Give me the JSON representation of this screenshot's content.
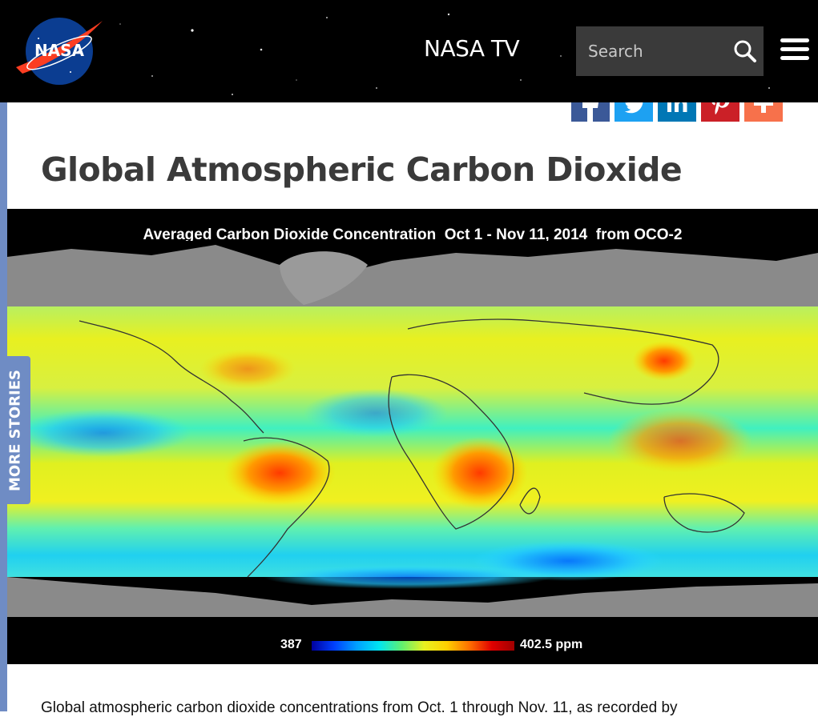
{
  "header": {
    "logo_text": "NASA",
    "nav_link": "NASA TV",
    "search": {
      "placeholder": "Search",
      "value": ""
    },
    "menu_icon": "hamburger-icon"
  },
  "share": {
    "buttons": [
      {
        "name": "facebook",
        "icon": "facebook-icon",
        "color": "#3b5998"
      },
      {
        "name": "twitter",
        "icon": "twitter-icon",
        "color": "#1da1f2"
      },
      {
        "name": "linkedin",
        "icon": "linkedin-icon",
        "color": "#0077b5"
      },
      {
        "name": "pinterest",
        "icon": "pinterest-icon",
        "color": "#cb2027"
      },
      {
        "name": "more",
        "icon": "plus-icon",
        "color": "#f7714b"
      }
    ]
  },
  "sidebar": {
    "more_stories_label": "MORE STORIES",
    "color": "#6f8cc4"
  },
  "article": {
    "title": "Global Atmospheric Carbon Dioxide",
    "figure": {
      "title": "Averaged Carbon Dioxide Concentration  Oct 1 - Nov 11, 2014  from OCO-2",
      "colorbar_min": "387",
      "colorbar_max": "402.5 ppm"
    },
    "body_start": "Global atmospheric carbon dioxide concentrations from Oct. 1 through Nov. 11, as recorded by"
  }
}
